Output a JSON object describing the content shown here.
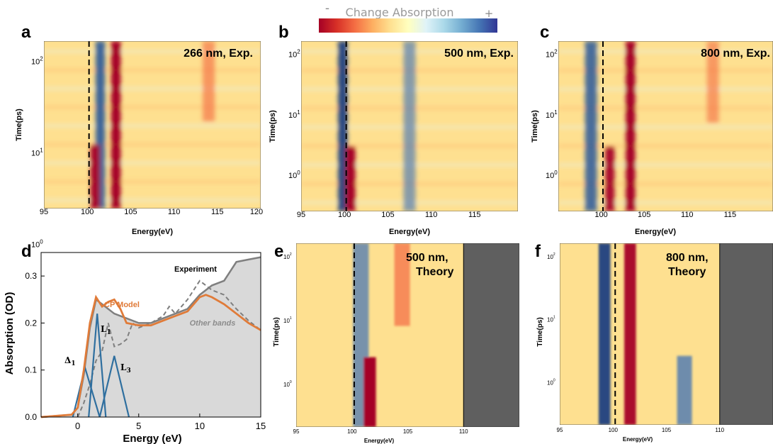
{
  "colorbar": {
    "title": "Change Absorption",
    "minus": "-",
    "plus": "+",
    "colors": [
      "#a50026",
      "#d73027",
      "#f46d43",
      "#fdae61",
      "#fee090",
      "#ffffbf",
      "#e0f3f8",
      "#abd9e9",
      "#74add1",
      "#4575b4",
      "#313695"
    ]
  },
  "colors": {
    "model": "#e07b39",
    "components": "#2f6f9f",
    "experiment": "#7f7f7f",
    "fill": "#d9d9d9",
    "theory_mask": "#5f5f5f"
  },
  "panels": [
    {
      "letter": "a",
      "label": "266 nm, Exp.",
      "label2": "",
      "kind": "exp",
      "xlabel": "Energy(eV)",
      "ylabel": "Time(ps)",
      "xticks": [
        "95",
        "100",
        "105",
        "110",
        "115",
        "120"
      ],
      "yticks": [
        {
          "base": "10",
          "exp": "2"
        },
        {
          "base": "10",
          "exp": "1"
        },
        {
          "base": "10",
          "exp": "0"
        }
      ]
    },
    {
      "letter": "b",
      "label": "500 nm, Exp.",
      "label2": "",
      "kind": "exp",
      "xlabel": "Energy(eV)",
      "ylabel": "Time(ps)",
      "xticks": [
        "95",
        "100",
        "105",
        "110",
        "115"
      ],
      "yticks": [
        {
          "base": "10",
          "exp": "2"
        },
        {
          "base": "10",
          "exp": "1"
        },
        {
          "base": "10",
          "exp": "0"
        }
      ]
    },
    {
      "letter": "c",
      "label": "800 nm, Exp.",
      "label2": "",
      "kind": "exp",
      "xlabel": "Energy(eV)",
      "ylabel": "Time(ps)",
      "xticks": [
        "100",
        "105",
        "110",
        "115"
      ],
      "yticks": [
        {
          "base": "10",
          "exp": "2"
        },
        {
          "base": "10",
          "exp": "1"
        },
        {
          "base": "10",
          "exp": "0"
        }
      ]
    },
    {
      "letter": "e",
      "label": "500 nm,",
      "label2": "Theory",
      "kind": "theory",
      "xlabel": "Energy(eV)",
      "ylabel": "Time(ps)",
      "xticks": [
        "95",
        "100",
        "105",
        "110"
      ],
      "yticks": [
        {
          "base": "10",
          "exp": "2"
        },
        {
          "base": "10",
          "exp": "1"
        },
        {
          "base": "10",
          "exp": "0"
        }
      ]
    },
    {
      "letter": "f",
      "label": "800 nm,",
      "label2": "Theory",
      "kind": "theory",
      "xlabel": "Energy(eV)",
      "ylabel": "Time(ps)",
      "xticks": [
        "95",
        "100",
        "105",
        "110"
      ],
      "yticks": [
        {
          "base": "10",
          "exp": "2"
        },
        {
          "base": "10",
          "exp": "1"
        },
        {
          "base": "10",
          "exp": "0"
        }
      ]
    }
  ],
  "panel_d": {
    "letter": "d",
    "xlabel": "Energy (eV)",
    "ylabel": "Absorption (OD)",
    "xticks": [
      "0",
      "5",
      "10",
      "15"
    ],
    "yticks": [
      "0.0",
      "0.1",
      "0.2",
      "0.3"
    ],
    "labels": {
      "cp_model": "CP Model",
      "experiment": "Experiment",
      "other_bands": "Other bands",
      "delta": "Δ",
      "delta_sub": "1",
      "l1": "L",
      "l1_sub": "1",
      "l3": "L",
      "l3_sub": "3"
    }
  },
  "chart_data": [
    {
      "panel": "a",
      "type": "heatmap",
      "title": "266 nm, Exp.",
      "xlabel": "Energy(eV)",
      "ylabel": "Time(ps)",
      "xlim": [
        95,
        120
      ],
      "ylog": true,
      "reference_line_x": 100.2,
      "features": [
        {
          "energy_eV": 101.5,
          "sign": "+",
          "strength": 0.85,
          "time_range_ps": "all"
        },
        {
          "energy_eV": 103.3,
          "sign": "-",
          "strength": 1.0,
          "time_range_ps": "all"
        },
        {
          "energy_eV": 100.9,
          "sign": "-",
          "strength": 0.9,
          "time_range_ps": "early (~10^0)"
        },
        {
          "energy_eV": 114,
          "sign": "-",
          "strength": 0.35,
          "time_range_ps": "~10^1 to 10^2"
        }
      ]
    },
    {
      "panel": "b",
      "type": "heatmap",
      "title": "500 nm, Exp.",
      "xlabel": "Energy(eV)",
      "ylabel": "Time(ps)",
      "xlim": [
        95,
        120
      ],
      "ylog": true,
      "reference_line_x": 100.2,
      "features": [
        {
          "energy_eV": 99.8,
          "sign": "+",
          "strength": 0.9,
          "time_range_ps": "all"
        },
        {
          "energy_eV": 100.7,
          "sign": "-",
          "strength": 1.0,
          "time_range_ps": "early, shifting to ~102 at late times"
        },
        {
          "energy_eV": 107.5,
          "sign": "+",
          "strength": 0.35,
          "time_range_ps": "all"
        }
      ]
    },
    {
      "panel": "c",
      "type": "heatmap",
      "title": "800 nm, Exp.",
      "xlabel": "Energy(eV)",
      "ylabel": "Time(ps)",
      "xlim": [
        95,
        120
      ],
      "ylog": true,
      "reference_line_x": 100.2,
      "features": [
        {
          "energy_eV": 98.8,
          "sign": "+",
          "strength": 0.75,
          "time_range_ps": "all"
        },
        {
          "energy_eV": 101.0,
          "sign": "-",
          "strength": 0.9,
          "time_range_ps": "early"
        },
        {
          "energy_eV": 103.4,
          "sign": "-",
          "strength": 1.0,
          "time_range_ps": "all"
        },
        {
          "energy_eV": 113,
          "sign": "-",
          "strength": 0.3,
          "time_range_ps": "~10^1 to 10^2"
        }
      ]
    },
    {
      "panel": "d",
      "type": "line",
      "xlabel": "Energy (eV)",
      "ylabel": "Absorption (OD)",
      "xlim": [
        -3,
        15
      ],
      "ylim": [
        0,
        0.35
      ],
      "series": [
        {
          "name": "Experiment",
          "style": "solid-gray-filled",
          "x": [
            -3,
            -0.5,
            0,
            0.5,
            1,
            1.5,
            2,
            3,
            4,
            5,
            6,
            7,
            8,
            9,
            10,
            11,
            12,
            13,
            14,
            15
          ],
          "y": [
            0.0,
            0.005,
            0.02,
            0.09,
            0.19,
            0.25,
            0.24,
            0.22,
            0.21,
            0.2,
            0.2,
            0.21,
            0.22,
            0.23,
            0.26,
            0.28,
            0.29,
            0.33,
            0.335,
            0.34
          ]
        },
        {
          "name": "CP Model",
          "x": [
            -3,
            -0.5,
            0,
            0.5,
            1,
            1.5,
            2,
            2.5,
            3,
            3.5,
            4,
            5,
            6,
            7,
            8,
            9,
            10,
            10.5,
            11,
            12,
            13,
            14,
            15
          ],
          "y": [
            0.0,
            0.005,
            0.02,
            0.1,
            0.2,
            0.255,
            0.235,
            0.245,
            0.25,
            0.23,
            0.2,
            0.195,
            0.195,
            0.205,
            0.215,
            0.225,
            0.255,
            0.26,
            0.255,
            0.24,
            0.22,
            0.2,
            0.185
          ]
        },
        {
          "name": "Other bands",
          "style": "dashed",
          "x": [
            0,
            0.5,
            1,
            1.5,
            2,
            2.5,
            3,
            3.5,
            4,
            4.5,
            5,
            6,
            7,
            7.5,
            8,
            9,
            10,
            11,
            12,
            13,
            14,
            15
          ],
          "y": [
            0.0,
            0.03,
            0.07,
            0.12,
            0.14,
            0.2,
            0.15,
            0.155,
            0.165,
            0.2,
            0.19,
            0.2,
            0.215,
            0.235,
            0.22,
            0.25,
            0.29,
            0.27,
            0.26,
            0.23,
            0.205,
            0.185
          ]
        },
        {
          "name": "Δ1",
          "x": [
            -0.4,
            0.6,
            1.8
          ],
          "y": [
            0.0,
            0.105,
            0.0
          ]
        },
        {
          "name": "L1",
          "x": [
            0.9,
            1.6,
            2.3
          ],
          "y": [
            0.0,
            0.22,
            0.0
          ]
        },
        {
          "name": "L3",
          "x": [
            1.8,
            3.0,
            4.2
          ],
          "y": [
            0.0,
            0.13,
            0.0
          ]
        }
      ]
    },
    {
      "panel": "e",
      "type": "heatmap",
      "title": "500 nm, Theory",
      "xlabel": "Energy(eV)",
      "ylabel": "Time(ps)",
      "xlim": [
        95,
        115
      ],
      "ylog": true,
      "reference_line_x": 100.2,
      "masked_above_eV": 110,
      "features": [
        {
          "energy_eV": 100.8,
          "sign": "+",
          "strength": 0.5,
          "time_range_ps": "all"
        },
        {
          "energy_eV": 101.6,
          "sign": "-",
          "strength": 1.0,
          "time_range_ps": "early"
        },
        {
          "energy_eV": 104.5,
          "sign": "-",
          "strength": 0.5,
          "time_range_ps": "late (10^1 to 10^2)"
        }
      ]
    },
    {
      "panel": "f",
      "type": "heatmap",
      "title": "800 nm, Theory",
      "xlabel": "Energy(eV)",
      "ylabel": "Time(ps)",
      "xlim": [
        95,
        115
      ],
      "ylog": true,
      "reference_line_x": 100.2,
      "masked_above_eV": 110,
      "features": [
        {
          "energy_eV": 99.2,
          "sign": "+",
          "strength": 0.9,
          "time_range_ps": "all"
        },
        {
          "energy_eV": 101.6,
          "sign": "-",
          "strength": 0.9,
          "time_range_ps": "all"
        },
        {
          "energy_eV": 106.7,
          "sign": "+",
          "strength": 0.6,
          "time_range_ps": "early"
        }
      ]
    }
  ]
}
